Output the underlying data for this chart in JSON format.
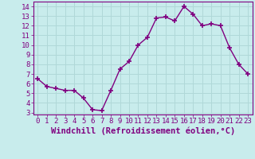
{
  "x": [
    0,
    1,
    2,
    3,
    4,
    5,
    6,
    7,
    8,
    9,
    10,
    11,
    12,
    13,
    14,
    15,
    16,
    17,
    18,
    19,
    20,
    21,
    22,
    23
  ],
  "y": [
    6.5,
    5.7,
    5.5,
    5.3,
    5.3,
    4.5,
    3.3,
    3.2,
    5.3,
    7.5,
    8.3,
    10.0,
    10.8,
    12.8,
    12.9,
    12.5,
    14.0,
    13.2,
    12.0,
    12.2,
    12.0,
    9.7,
    8.0,
    7.0
  ],
  "line_color": "#800080",
  "marker": "+",
  "marker_size": 4,
  "bg_color": "#c8ecec",
  "grid_color": "#b0d8d8",
  "xlabel": "Windchill (Refroidissement éolien,°C)",
  "ylabel_ticks": [
    3,
    4,
    5,
    6,
    7,
    8,
    9,
    10,
    11,
    12,
    13,
    14
  ],
  "xtick_labels": [
    "0",
    "1",
    "2",
    "3",
    "4",
    "5",
    "6",
    "7",
    "8",
    "9",
    "10",
    "11",
    "12",
    "13",
    "14",
    "15",
    "16",
    "17",
    "18",
    "19",
    "20",
    "21",
    "22",
    "23"
  ],
  "xlim": [
    -0.5,
    23.5
  ],
  "ylim": [
    2.8,
    14.5
  ],
  "tick_color": "#800080",
  "label_color": "#800080",
  "font_size": 6.5,
  "xlabel_fontsize": 7.5,
  "lw": 1.0
}
